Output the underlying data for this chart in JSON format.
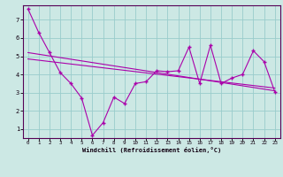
{
  "xlabel": "Windchill (Refroidissement éolien,°C)",
  "bg_color": "#cce8e4",
  "grid_color": "#99cccc",
  "line_color": "#aa00aa",
  "xlim": [
    -0.5,
    23.5
  ],
  "ylim": [
    0.5,
    7.8
  ],
  "xticks": [
    0,
    1,
    2,
    3,
    4,
    5,
    6,
    7,
    8,
    9,
    10,
    11,
    12,
    13,
    14,
    15,
    16,
    17,
    18,
    19,
    20,
    21,
    22,
    23
  ],
  "yticks": [
    1,
    2,
    3,
    4,
    5,
    6,
    7
  ],
  "line1_x": [
    0,
    1,
    2,
    3,
    4,
    5,
    6,
    7,
    8,
    9,
    10,
    11,
    12,
    13,
    14,
    15,
    16,
    17,
    18,
    19,
    20,
    21,
    22,
    23
  ],
  "line1_y": [
    7.6,
    6.3,
    5.2,
    4.1,
    3.5,
    2.7,
    0.65,
    1.35,
    2.75,
    2.4,
    3.5,
    3.6,
    4.2,
    4.15,
    4.2,
    5.5,
    3.5,
    5.6,
    3.5,
    3.8,
    4.0,
    5.3,
    4.7,
    3.05
  ],
  "line2_x": [
    0,
    23
  ],
  "line2_y": [
    5.2,
    3.1
  ],
  "line3_x": [
    0,
    23
  ],
  "line3_y": [
    4.85,
    3.25
  ],
  "marker": "+"
}
